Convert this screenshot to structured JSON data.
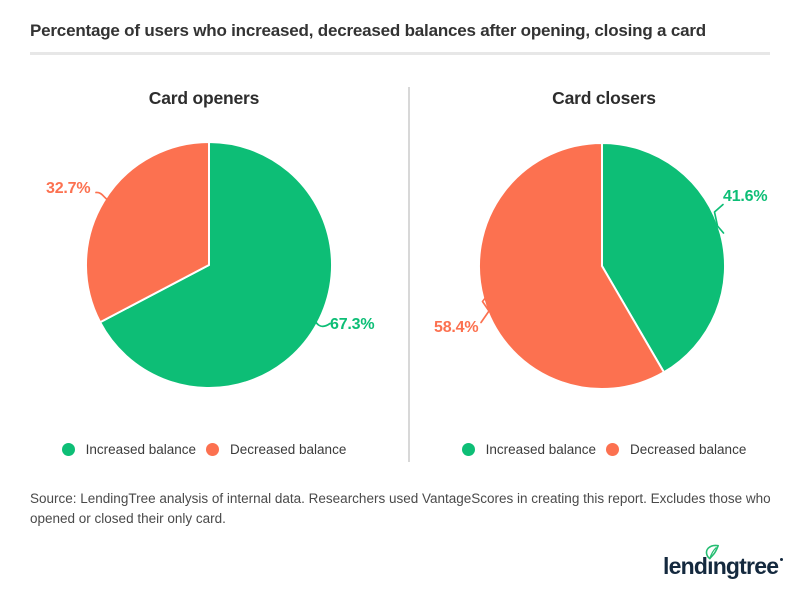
{
  "header": {
    "title": "Percentage of users who increased, decreased balances after opening, closing a card"
  },
  "chart_data": [
    {
      "type": "pie",
      "title": "Card openers",
      "labels": [
        "Increased balance",
        "Decreased balance"
      ],
      "values": [
        67.3,
        32.7
      ],
      "data_labels": [
        "67.3%",
        "32.7%"
      ],
      "colors": [
        "#0dbe76",
        "#fc7150"
      ],
      "start_angle_deg": -90,
      "direction": "clockwise",
      "legend_position": "bottom"
    },
    {
      "type": "pie",
      "title": "Card closers",
      "labels": [
        "Increased balance",
        "Decreased balance"
      ],
      "values": [
        41.6,
        58.4
      ],
      "data_labels": [
        "41.6%",
        "58.4%"
      ],
      "colors": [
        "#0dbe76",
        "#fc7150"
      ],
      "start_angle_deg": -90,
      "direction": "clockwise",
      "legend_position": "bottom"
    }
  ],
  "footer": {
    "source": "Source: LendingTree analysis of internal data. Researchers used VantageScores in creating this report. Excludes those who opened or closed their only card.",
    "logo": {
      "pre": "lend",
      "dotless_i": "ı",
      "post": "ngtree"
    }
  }
}
